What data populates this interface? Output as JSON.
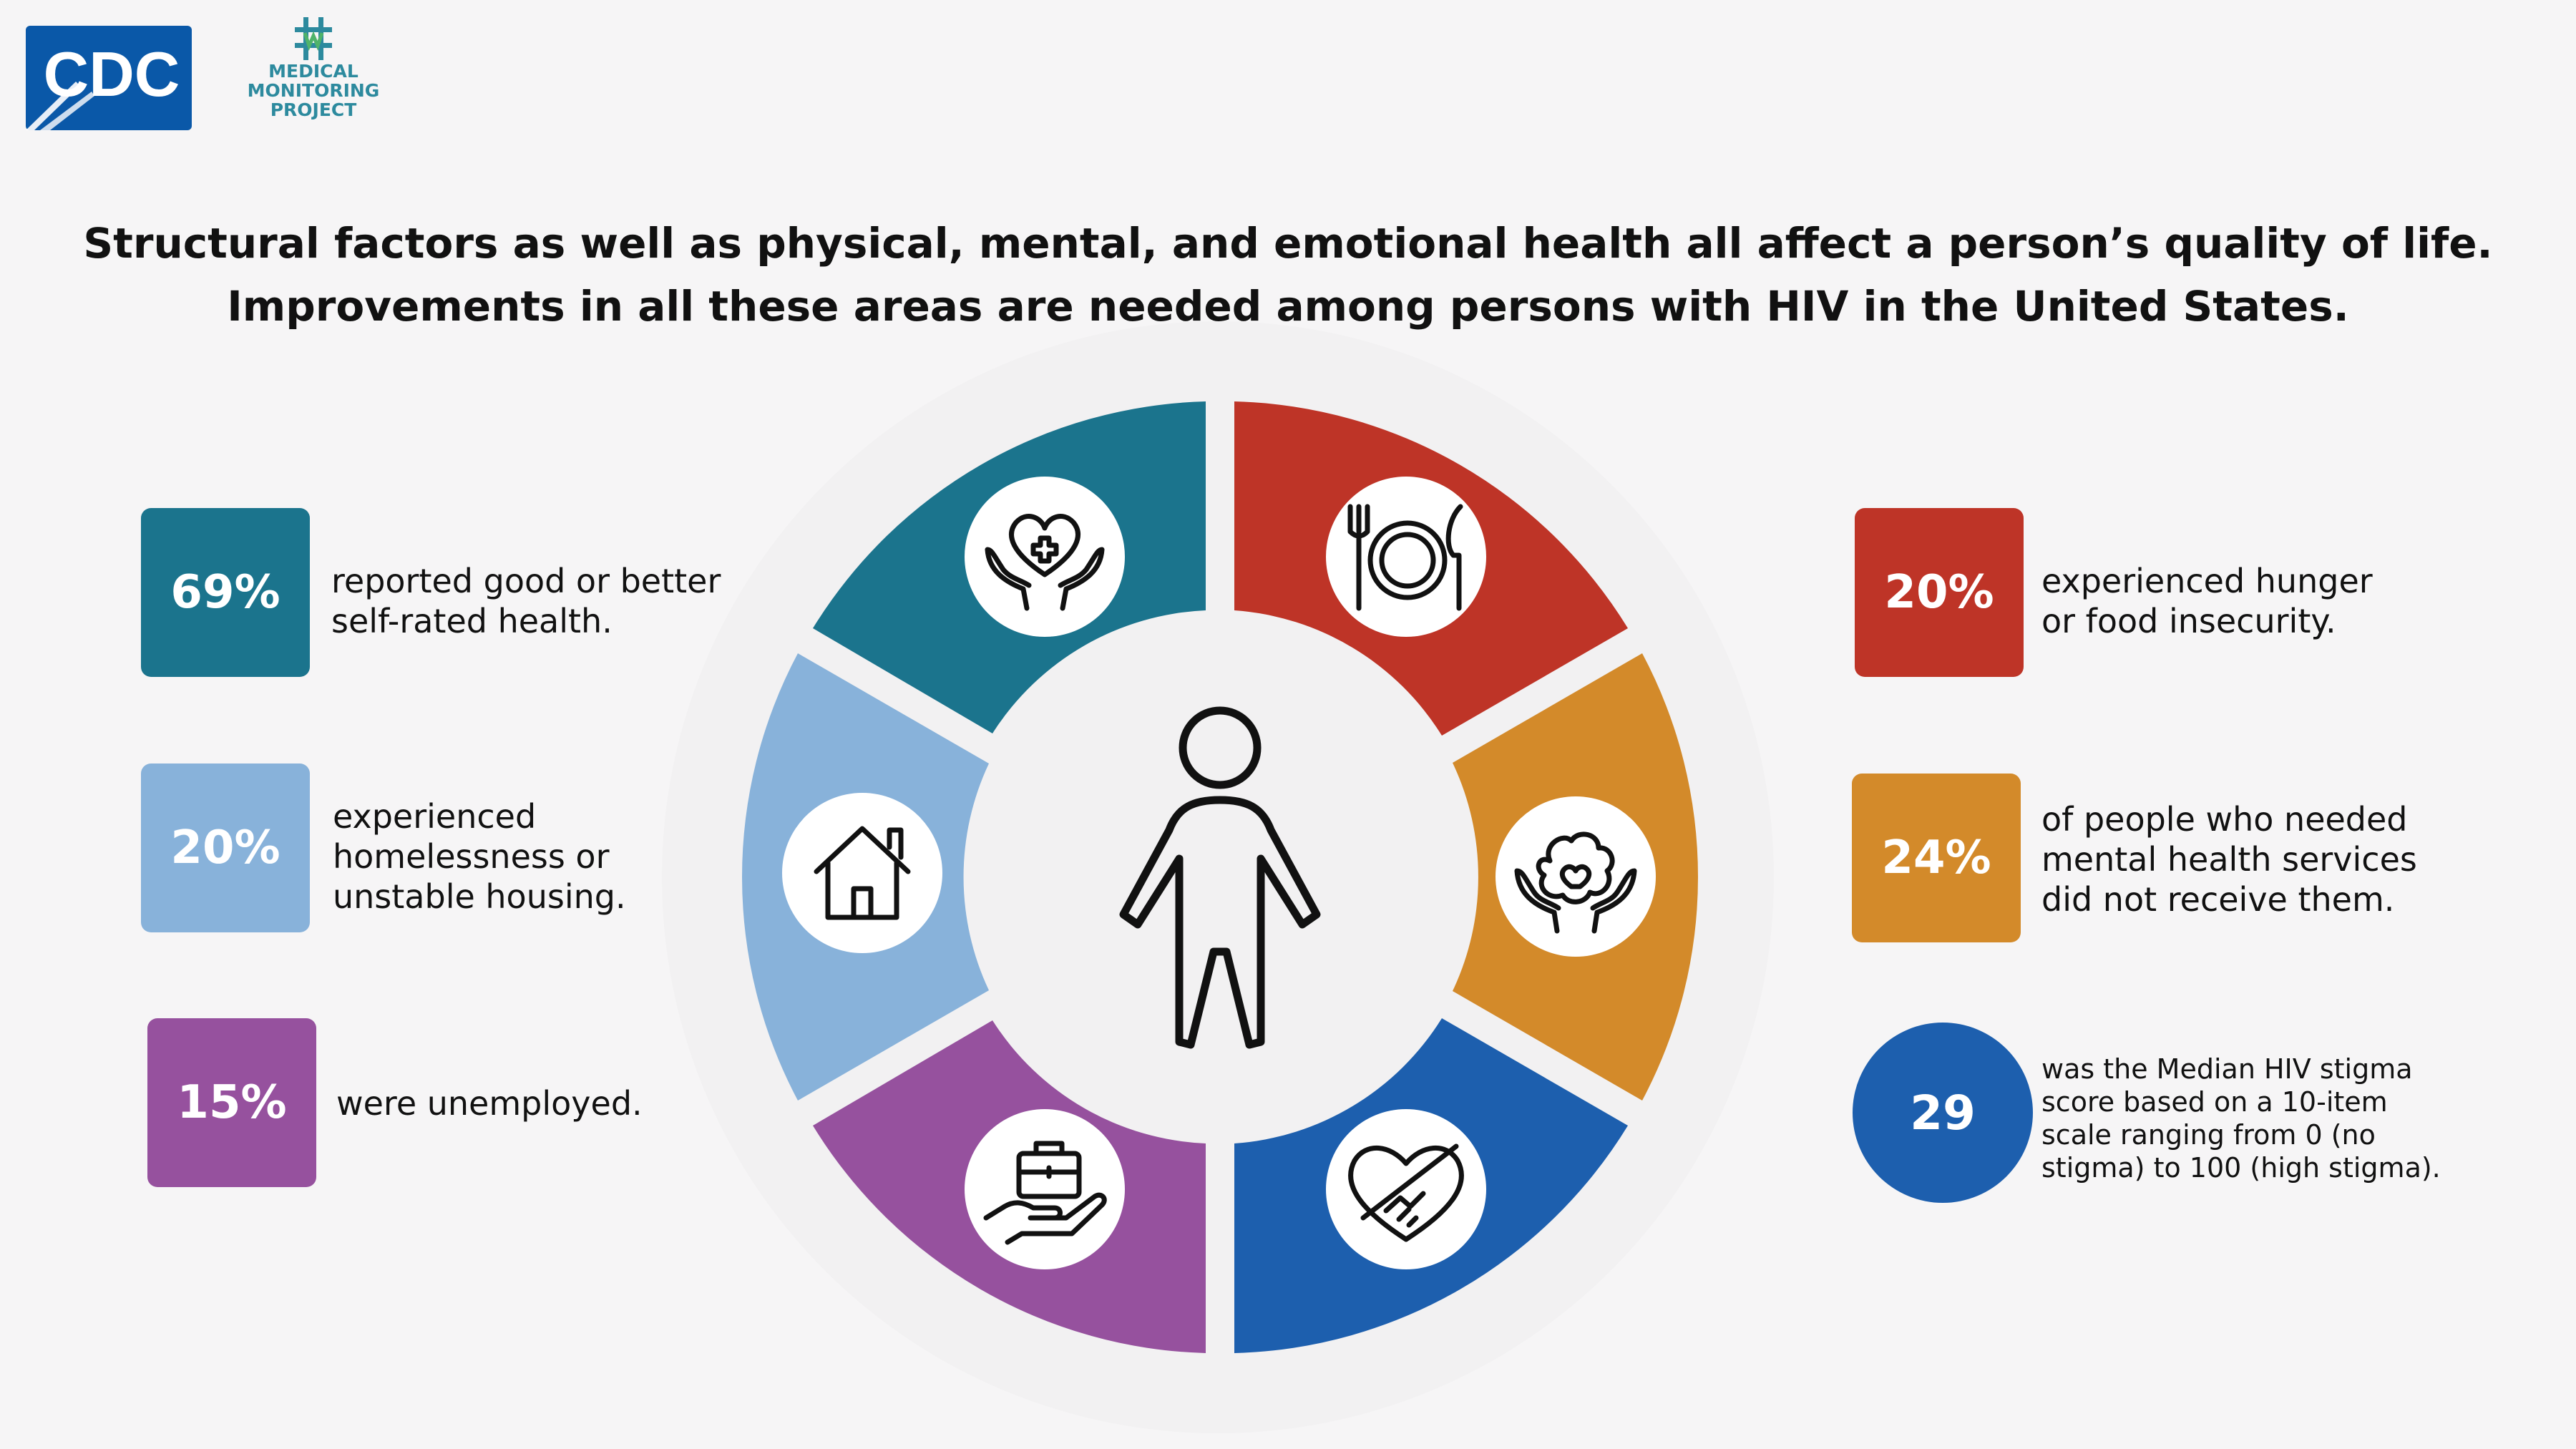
{
  "header": {
    "cdc_logo_text": "CDC",
    "mmp_logo_lines": [
      "MEDICAL",
      "MONITORING",
      "PROJECT"
    ]
  },
  "headline": {
    "line1": "Structural factors as well as physical, mental, and emotional health all affect a person’s quality of life.",
    "line2": "Improvements in all these areas are needed among persons with HIV in the United States."
  },
  "colors": {
    "self_rated_health": "#1b748d",
    "housing": "#88b2da",
    "employment": "#96519e",
    "food": "#be3427",
    "mental_health": "#d38a2a",
    "stigma": "#1d5fae"
  },
  "wheel": {
    "segments": [
      {
        "name": "self-rated-health",
        "icon": "heart-hands-icon"
      },
      {
        "name": "food-insecurity",
        "icon": "plate-utensils-icon"
      },
      {
        "name": "mental-health",
        "icon": "brain-hands-icon"
      },
      {
        "name": "stigma",
        "icon": "heart-handshake-icon"
      },
      {
        "name": "employment",
        "icon": "briefcase-hand-icon"
      },
      {
        "name": "housing",
        "icon": "house-icon"
      }
    ],
    "center_icon": "person-icon"
  },
  "stats": {
    "self_rated_health": {
      "value": "69%",
      "text_lines": [
        "reported good or better",
        "self-rated health."
      ]
    },
    "housing": {
      "value": "20%",
      "text_lines": [
        "experienced",
        "homelessness or",
        "unstable housing."
      ]
    },
    "employment": {
      "value": "15%",
      "text_lines": [
        "were unemployed."
      ]
    },
    "food": {
      "value": "20%",
      "text_lines": [
        "experienced hunger",
        "or food insecurity."
      ]
    },
    "mental_health": {
      "value": "24%",
      "text_lines": [
        "of people who needed",
        "mental health services",
        "did not receive them."
      ]
    },
    "stigma": {
      "value": "29",
      "text_lines": [
        "was the Median HIV stigma",
        "score based on a 10-item",
        "scale ranging from 0 (no",
        "stigma) to 100 (high stigma)."
      ]
    }
  }
}
